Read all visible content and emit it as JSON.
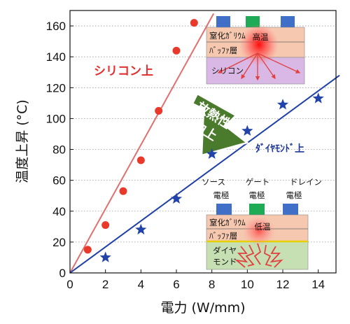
{
  "chart_data": {
    "type": "scatter",
    "xlabel": "電力 (W/mm)",
    "ylabel": "温度上昇 (°C)",
    "xlim": [
      0,
      15
    ],
    "ylim": [
      0,
      170
    ],
    "xticks": [
      0,
      2,
      4,
      6,
      8,
      10,
      12,
      14
    ],
    "yticks": [
      0,
      20,
      40,
      60,
      80,
      100,
      120,
      140,
      160
    ],
    "grid": "horizontal-dotted",
    "series": [
      {
        "name": "シリコン上",
        "marker": "circle",
        "color": "#e8392b",
        "x": [
          1,
          2,
          3,
          4,
          5,
          6,
          7
        ],
        "y": [
          15,
          31,
          53,
          73,
          105,
          144,
          162
        ],
        "fit_line": {
          "x": [
            0,
            8.1
          ],
          "y": [
            0,
            168
          ],
          "color": "#e07070"
        }
      },
      {
        "name": "ダイヤモンド上",
        "marker": "star",
        "color": "#2244aa",
        "x": [
          2,
          4,
          6,
          8,
          10,
          12,
          14
        ],
        "y": [
          10,
          28,
          48,
          77,
          92,
          109,
          113
        ],
        "fit_line": {
          "x": [
            0,
            15.2
          ],
          "y": [
            0,
            128
          ],
          "color": "#2040a8"
        }
      }
    ]
  },
  "annotations": {
    "silicon_label": "シリコン上",
    "diamond_label": "ﾀﾞｲﾔﾓﾝﾄﾞ上",
    "arrow_text_1": "放熱性",
    "arrow_text_2": "向上"
  },
  "inset_silicon": {
    "layer_gan": "窒化ｶﾞﾘｳﾑ",
    "layer_buffer": "ﾊﾞｯﾌｧ層",
    "hot_label": "高温",
    "substrate": "シリコン"
  },
  "inset_diamond": {
    "source": [
      "ソース",
      "電極"
    ],
    "gate": [
      "ゲート",
      "電極"
    ],
    "drain": [
      "ドレイン",
      "電極"
    ],
    "layer_gan": "窒化ｶﾞﾘｳﾑ",
    "layer_buffer": "ﾊﾞｯﾌｧ層",
    "hot_label": "低温",
    "substrate": [
      "ダイヤ",
      "モンド"
    ]
  },
  "colors": {
    "gan_layer": "#f6c8b0",
    "silicon_substrate": "#d9b8e6",
    "diamond_substrate": "#c6e0b4",
    "electrode": "#3f6fc6",
    "gate": "#1faa55",
    "arrow": "#4a7a2c"
  }
}
